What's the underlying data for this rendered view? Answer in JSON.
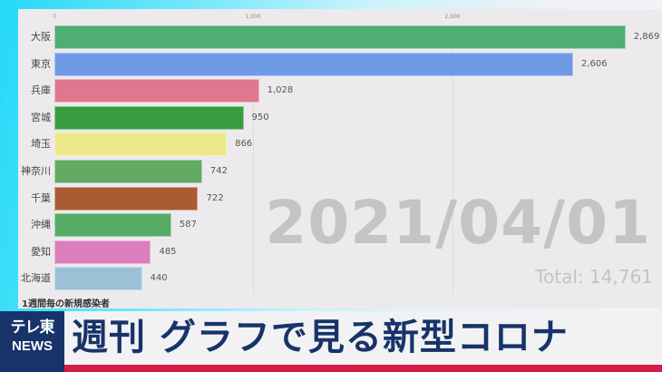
{
  "chart_data": {
    "type": "bar",
    "orientation": "horizontal",
    "title": "",
    "caption": "1週間毎の新規感染者",
    "date": "2021/04/01",
    "total_label": "Total: 14,761",
    "xlabel": "",
    "ylabel": "",
    "xlim": [
      0,
      3000
    ],
    "xticks": [
      0,
      1000,
      2000
    ],
    "xtick_labels": [
      "0",
      "1,000",
      "2,000"
    ],
    "grid": true,
    "categories": [
      "大阪",
      "東京",
      "兵庫",
      "宮城",
      "埼玉",
      "神奈川",
      "千葉",
      "沖縄",
      "愛知",
      "北海道"
    ],
    "values": [
      2869,
      2606,
      1028,
      950,
      866,
      742,
      722,
      587,
      485,
      440
    ],
    "value_labels": [
      "2,869",
      "2,606",
      "1,028",
      "950",
      "866",
      "742",
      "722",
      "587",
      "485",
      "440"
    ],
    "colors": [
      "#4fae72",
      "#6f9be6",
      "#e0778e",
      "#3a9c3f",
      "#ece88a",
      "#64a964",
      "#a95b32",
      "#57aa66",
      "#dc7dbd",
      "#9bc1d6"
    ]
  },
  "overlay": {
    "caption": "1週間毎の新規感染者",
    "date": "2021/04/01",
    "total": "Total: 14,761"
  },
  "banner": {
    "logo_top": "テレ東",
    "logo_bottom": "NEWS",
    "headline": "週刊 グラフで見る新型コロナ",
    "colors": {
      "navy": "#17336a",
      "red": "#d41d45"
    }
  }
}
